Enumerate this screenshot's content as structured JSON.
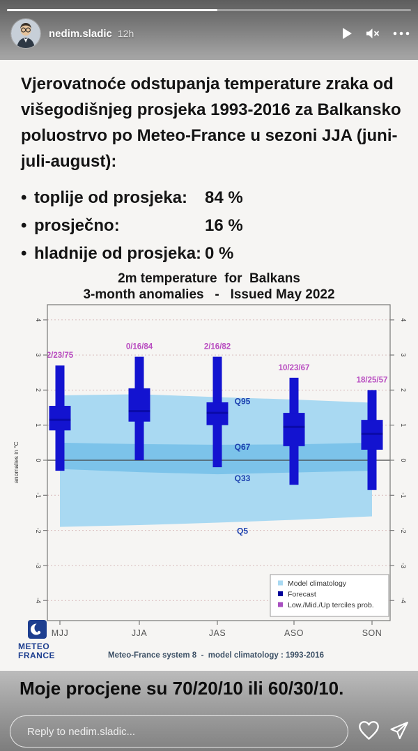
{
  "story": {
    "username": "nedim.sladic",
    "time": "12h",
    "progress_percent": 52,
    "reply_placeholder": "Reply to nedim.sladic..."
  },
  "post": {
    "paragraph": "Vjerovatnoće odstupanja temperature zraka od višegodišnjeg prosjeka 1993-2016 za Balkansko poluostrvo po Meteo-France u sezoni JJA (juni-juli-august):",
    "bullets": [
      {
        "label": "toplije od prosjeka:",
        "value": "84 %"
      },
      {
        "label": "prosječno:",
        "value": "16 %"
      },
      {
        "label": "hladnije od prosjeka:",
        "value": "0 %"
      }
    ],
    "footer_note": "Moje procjene su 70/20/10 ili 60/30/10."
  },
  "chart_data": {
    "type": "boxplot",
    "title_line1": "2m temperature  for  Balkans",
    "title_line2": "3-month anomalies   -   Issued May 2022",
    "ylabel": "anomalies in °C",
    "ylim": [
      -4.5,
      4.5
    ],
    "yticks": [
      -4,
      -3,
      -2,
      -1,
      0,
      1,
      2,
      3,
      4
    ],
    "grid": "dotted horizontal at integer anomalies, solid zero line",
    "categories": [
      "MJJ",
      "JJA",
      "JAS",
      "ASO",
      "SON"
    ],
    "series": [
      {
        "name": "MJJ",
        "terciles": "2/23/75",
        "whisker_low": -0.3,
        "box_low": 0.85,
        "median": 1.15,
        "box_high": 1.55,
        "whisker_high": 2.7
      },
      {
        "name": "JJA",
        "terciles": "0/16/84",
        "whisker_low": 0.0,
        "box_low": 1.1,
        "median": 1.4,
        "box_high": 2.05,
        "whisker_high": 2.95
      },
      {
        "name": "JAS",
        "terciles": "2/16/82",
        "whisker_low": -0.2,
        "box_low": 1.0,
        "median": 1.35,
        "box_high": 1.65,
        "whisker_high": 2.95
      },
      {
        "name": "ASO",
        "terciles": "10/23/67",
        "whisker_low": -0.7,
        "box_low": 0.4,
        "median": 0.95,
        "box_high": 1.35,
        "whisker_high": 2.35
      },
      {
        "name": "SON",
        "terciles": "18/25/57",
        "whisker_low": -0.85,
        "box_low": 0.3,
        "median": 0.75,
        "box_high": 1.15,
        "whisker_high": 2.0
      }
    ],
    "climatology": {
      "outer_top": [
        1.85,
        1.88,
        1.8,
        1.73,
        1.64
      ],
      "outer_bottom": [
        -1.9,
        -1.85,
        -1.78,
        -1.7,
        -1.6
      ],
      "inner_top": [
        0.5,
        0.46,
        0.44,
        0.45,
        0.5
      ],
      "inner_bottom": [
        -0.25,
        -0.34,
        -0.4,
        -0.35,
        -0.3
      ]
    },
    "quantile_labels": [
      {
        "text": "Q95",
        "value": 1.68
      },
      {
        "text": "Q67",
        "value": 0.38
      },
      {
        "text": "Q33",
        "value": -0.52
      },
      {
        "text": "Q5",
        "value": -2.02
      }
    ],
    "legend": [
      {
        "label": "Model climatology",
        "color": "#a9d9f2"
      },
      {
        "label": "Forecast",
        "color": "#000099"
      },
      {
        "label": "Low./Mid./Up terciles prob.",
        "color": "#a84fc0"
      }
    ],
    "legend_position": "bottom-right inside plot",
    "caption": "Meteo-France system 8  -  model climatology : 1993-2016",
    "source_logo": {
      "line1": "METEO",
      "line2": "FRANCE"
    },
    "colors": {
      "climatology_outer": "#a9d9f2",
      "climatology_inner": "#7cc3ea",
      "forecast": "#1313d0",
      "median": "#0a0aa8",
      "terciles_label": "#b84cc0",
      "quantile_label": "#1b3fae",
      "grid": "#d8bcbc",
      "axis": "#777777",
      "zero_line": "#444444"
    }
  }
}
